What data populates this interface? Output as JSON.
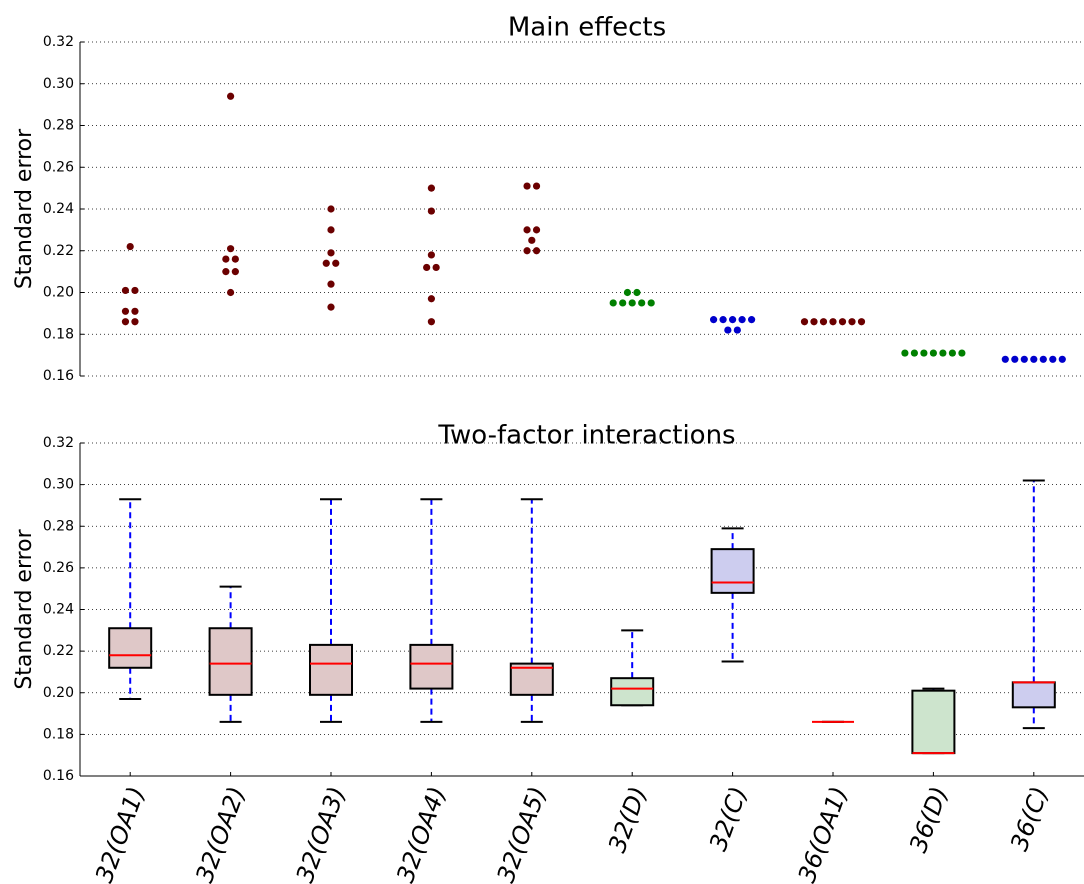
{
  "chart_data": [
    {
      "type": "strip",
      "title": "Main effects",
      "ylabel": "Standard error",
      "ylim": [
        0.16,
        0.32
      ],
      "yticks": [
        0.16,
        0.18,
        {
          "value": 0.2,
          "label": "0.20"
        },
        0.22,
        0.24,
        0.26,
        0.28,
        {
          "value": 0.3,
          "label": "0.30"
        },
        0.32
      ],
      "grid": true,
      "groups": [
        {
          "color": "#6b0000",
          "values": [
            0.222,
            0.201,
            0.201,
            0.191,
            0.191,
            0.186,
            0.186
          ]
        },
        {
          "color": "#6b0000",
          "values": [
            0.294,
            0.221,
            0.216,
            0.216,
            0.21,
            0.21,
            0.2
          ]
        },
        {
          "color": "#6b0000",
          "values": [
            0.24,
            0.23,
            0.219,
            0.214,
            0.214,
            0.204,
            0.193
          ]
        },
        {
          "color": "#6b0000",
          "values": [
            0.25,
            0.239,
            0.218,
            0.212,
            0.212,
            0.197,
            0.186
          ]
        },
        {
          "color": "#6b0000",
          "values": [
            0.251,
            0.251,
            0.23,
            0.23,
            0.225,
            0.22,
            0.22
          ]
        },
        {
          "color": "#008000",
          "values": [
            0.2,
            0.2,
            0.195,
            0.195,
            0.195,
            0.195,
            0.195
          ]
        },
        {
          "color": "#0000cc",
          "values": [
            0.187,
            0.187,
            0.187,
            0.187,
            0.187,
            0.182,
            0.182
          ]
        },
        {
          "color": "#6b0000",
          "values": [
            0.186,
            0.186,
            0.186,
            0.186,
            0.186,
            0.186,
            0.186
          ]
        },
        {
          "color": "#008000",
          "values": [
            0.171,
            0.171,
            0.171,
            0.171,
            0.171,
            0.171,
            0.171
          ]
        },
        {
          "color": "#0000cc",
          "values": [
            0.168,
            0.168,
            0.168,
            0.168,
            0.168,
            0.168,
            0.168
          ]
        }
      ]
    },
    {
      "type": "box",
      "title": "Two-factor interactions",
      "ylabel": "Standard error",
      "categories": [
        "32(OA1)",
        "32(OA2)",
        "32(OA3)",
        "32(OA4)",
        "32(OA5)",
        "32(D)",
        "32(C)",
        "36(OA1)",
        "36(D)",
        "36(C)"
      ],
      "ylim": [
        0.16,
        0.32
      ],
      "yticks": [
        0.16,
        0.18,
        {
          "value": 0.2,
          "label": "0.20"
        },
        0.22,
        0.24,
        0.26,
        0.28,
        {
          "value": 0.3,
          "label": "0.30"
        },
        0.32
      ],
      "grid": true,
      "median_color": "#ff0000",
      "whisker_color": "#0000ff",
      "boxes": [
        {
          "color": "#dfc8c8",
          "whislo": 0.197,
          "q1": 0.212,
          "med": 0.218,
          "q3": 0.231,
          "whishi": 0.293
        },
        {
          "color": "#dfc8c8",
          "whislo": 0.186,
          "q1": 0.199,
          "med": 0.214,
          "q3": 0.231,
          "whishi": 0.251
        },
        {
          "color": "#dfc8c8",
          "whislo": 0.186,
          "q1": 0.199,
          "med": 0.214,
          "q3": 0.223,
          "whishi": 0.293
        },
        {
          "color": "#dfc8c8",
          "whislo": 0.186,
          "q1": 0.202,
          "med": 0.214,
          "q3": 0.223,
          "whishi": 0.293
        },
        {
          "color": "#dfc8c8",
          "whislo": 0.186,
          "q1": 0.199,
          "med": 0.212,
          "q3": 0.214,
          "whishi": 0.293
        },
        {
          "color": "#cde4cd",
          "whislo": 0.194,
          "q1": 0.194,
          "med": 0.202,
          "q3": 0.207,
          "whishi": 0.23
        },
        {
          "color": "#cdcdef",
          "whislo": 0.215,
          "q1": 0.248,
          "med": 0.253,
          "q3": 0.269,
          "whishi": 0.279
        },
        {
          "color": "#dfc8c8",
          "whislo": 0.186,
          "q1": 0.186,
          "med": 0.186,
          "q3": 0.186,
          "whishi": 0.186
        },
        {
          "color": "#cde4cd",
          "whislo": 0.171,
          "q1": 0.171,
          "med": 0.171,
          "q3": 0.201,
          "whishi": 0.202
        },
        {
          "color": "#cdcdef",
          "whislo": 0.183,
          "q1": 0.193,
          "med": 0.205,
          "q3": 0.205,
          "whishi": 0.302
        }
      ]
    }
  ]
}
